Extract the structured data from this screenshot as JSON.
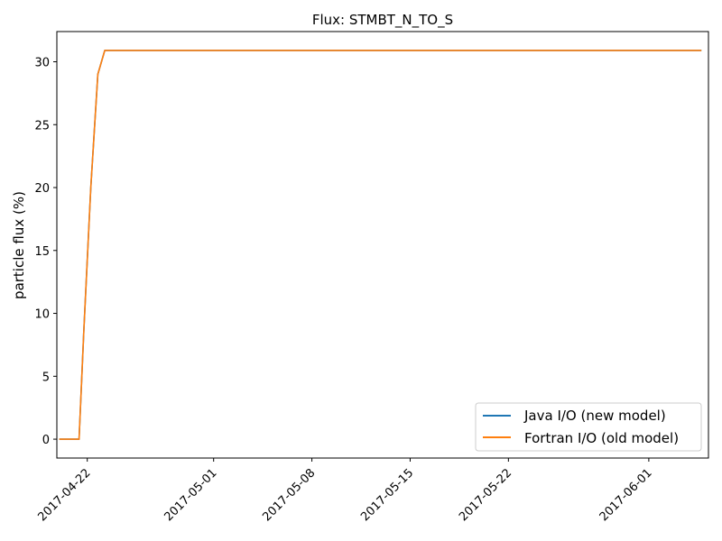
{
  "chart_data": {
    "type": "line",
    "title": "Flux: STMBT_N_TO_S",
    "xlabel": "",
    "ylabel": "particle flux (%)",
    "x_type": "date",
    "xlim": [
      "2017-04-19T20:00",
      "2017-06-05T06:00"
    ],
    "ylim": [
      -1.5,
      32.4
    ],
    "x_ticks": [
      "2017-04-22",
      "2017-05-01",
      "2017-05-08",
      "2017-05-15",
      "2017-05-22",
      "2017-06-01"
    ],
    "y_ticks": [
      0,
      5,
      10,
      15,
      20,
      25,
      30
    ],
    "grid": false,
    "legend_position": "bottom-right",
    "series": [
      {
        "name": "Java I/O (new model)",
        "color": "#1f77b4",
        "x": [
          "2017-04-20T00:00",
          "2017-04-21T10:00",
          "2017-04-21T18:00",
          "2017-04-22T06:00",
          "2017-04-22T18:00",
          "2017-04-23T06:00",
          "2017-06-04T18:00"
        ],
        "y": [
          0,
          0,
          8.5,
          20.0,
          29.0,
          30.9,
          30.9
        ]
      },
      {
        "name": "Fortran I/O (old model)",
        "color": "#ff7f0e",
        "x": [
          "2017-04-20T00:00",
          "2017-04-21T10:00",
          "2017-04-21T18:00",
          "2017-04-22T06:00",
          "2017-04-22T18:00",
          "2017-04-23T06:00",
          "2017-06-04T18:00"
        ],
        "y": [
          0,
          0,
          8.5,
          20.0,
          29.0,
          30.9,
          30.9
        ]
      }
    ]
  }
}
